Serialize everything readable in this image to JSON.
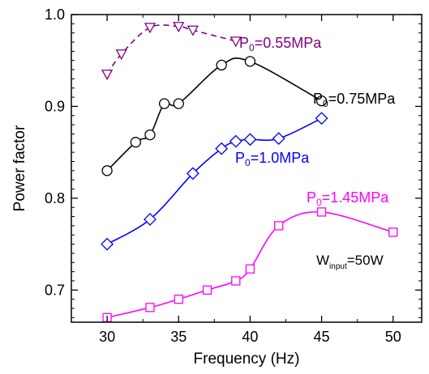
{
  "chart_data": {
    "type": "line",
    "xlabel": "Frequency (Hz)",
    "ylabel": "Power factor",
    "xlim": [
      27.5,
      52
    ],
    "ylim": [
      0.665,
      1.0
    ],
    "x_ticks": [
      30,
      35,
      40,
      45,
      50
    ],
    "x_tick_labels": [
      "30",
      "35",
      "40",
      "45",
      "50"
    ],
    "y_ticks": [
      0.7,
      0.8,
      0.9,
      1.0
    ],
    "y_tick_labels": [
      "0.7",
      "0.8",
      "0.9",
      "1.0"
    ],
    "grid": false,
    "series": [
      {
        "label_main": "P",
        "label_sub": "0",
        "label_rest": "=0.55MPa",
        "color": "#800080",
        "marker": "triangle-down",
        "line": "dashed",
        "x": [
          30,
          31,
          33,
          35,
          36,
          39
        ],
        "y": [
          0.935,
          0.957,
          0.986,
          0.987,
          0.983,
          0.971
        ]
      },
      {
        "label_main": "P",
        "label_sub": "0",
        "label_rest": "=0.75MPa",
        "color": "#000000",
        "marker": "circle",
        "line": "solid",
        "x": [
          30,
          32,
          33,
          34,
          35,
          38,
          40,
          45
        ],
        "y": [
          0.83,
          0.861,
          0.869,
          0.903,
          0.903,
          0.945,
          0.949,
          0.906
        ]
      },
      {
        "label_main": "P",
        "label_sub": "0",
        "label_rest": "=1.0MPa",
        "color": "#0000ff",
        "marker": "diamond",
        "line": "solid",
        "x": [
          30,
          33,
          36,
          38,
          39,
          40,
          42,
          45
        ],
        "y": [
          0.75,
          0.777,
          0.827,
          0.854,
          0.862,
          0.864,
          0.865,
          0.887
        ]
      },
      {
        "label_main": "P",
        "label_sub": "0",
        "label_rest": "=1.45MPa",
        "color": "#ff00ff",
        "marker": "square",
        "line": "solid",
        "x": [
          30,
          33,
          35,
          37,
          39,
          40,
          42,
          45,
          50
        ],
        "y": [
          0.67,
          0.681,
          0.69,
          0.7,
          0.71,
          0.723,
          0.77,
          0.785,
          0.763
        ]
      }
    ],
    "annotation": {
      "main": "W",
      "sub": "input",
      "rest": "=50W"
    }
  }
}
